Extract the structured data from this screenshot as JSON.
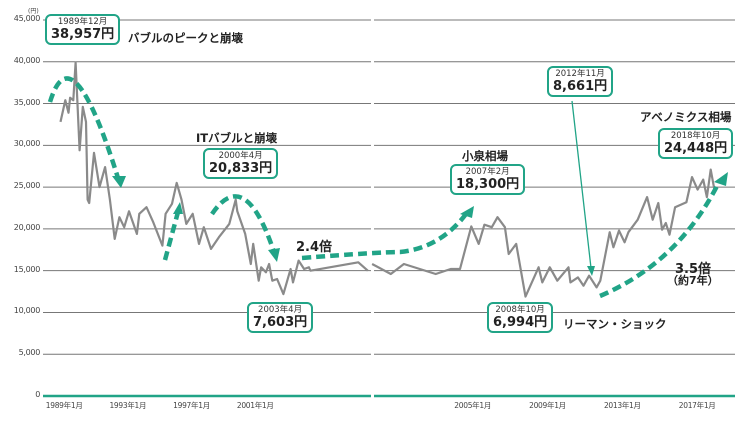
{
  "chart_data": {
    "type": "line",
    "yunit": "(円)",
    "ylim": [
      0,
      45000
    ],
    "yticks": [
      "0",
      "5,000",
      "10,000",
      "15,000",
      "20,000",
      "25,000",
      "30,000",
      "35,000",
      "40,000",
      "45,000"
    ],
    "ytick_values": [
      0,
      5000,
      10000,
      15000,
      20000,
      25000,
      30000,
      35000,
      40000,
      45000
    ],
    "grid": true,
    "panels": [
      {
        "xlim": [
          1988.7,
          2009.3
        ],
        "xticks": [
          {
            "year": 1989,
            "label": "1989年1月"
          },
          {
            "year": 1993,
            "label": "1993年1月"
          },
          {
            "year": 1997,
            "label": "1997年1月"
          },
          {
            "year": 2001,
            "label": "2001年1月"
          }
        ],
        "x": [
          1989.8,
          1990.1,
          1990.3,
          1990.4,
          1990.6,
          1990.75,
          1991.0,
          1991.2,
          1991.4,
          1991.5,
          1991.6,
          1991.9,
          1992.25,
          1992.6,
          1992.9,
          1993.2,
          1993.5,
          1993.8,
          1994.1,
          1994.6,
          1994.75,
          1995.2,
          1995.6,
          1996.2,
          1996.4,
          1996.8,
          1997.1,
          1997.4,
          1997.7,
          1998.1,
          1998.5,
          1998.8,
          1999.25,
          1999.75,
          2000.4,
          2000.8,
          2000.9,
          2001.4,
          2001.75,
          2001.9,
          2002.25,
          2002.4,
          2002.7,
          2002.9,
          2003.1,
          2003.4,
          2003.8,
          2004.25,
          2004.4,
          2004.75,
          2005.1,
          2005.4,
          2005.5,
          2008.5,
          2009.1
        ],
        "y": [
          32800,
          35400,
          33900,
          35700,
          35400,
          39900,
          29400,
          34600,
          32800,
          23500,
          23100,
          29100,
          25000,
          27400,
          23500,
          18800,
          21400,
          20200,
          22100,
          19400,
          21800,
          22600,
          20900,
          18000,
          21800,
          23000,
          25500,
          23500,
          20600,
          21800,
          18200,
          20200,
          17600,
          19000,
          20600,
          23500,
          22100,
          19400,
          15800,
          18200,
          13800,
          15400,
          14800,
          15800,
          13800,
          14000,
          12200,
          15200,
          13600,
          16200,
          15200,
          15400,
          15000,
          16000,
          15000
        ]
      },
      {
        "xlim": [
          2000.6,
          2019.9
        ],
        "xticks": [
          {
            "year": 2005,
            "label": "2005年1月"
          },
          {
            "year": 2009,
            "label": "2009年1月"
          },
          {
            "year": 2013,
            "label": "2013年1月"
          },
          {
            "year": 2017,
            "label": "2017年1月"
          }
        ],
        "x": [
          2000.5,
          2001.5,
          2002.2,
          2003.9,
          2004.7,
          2005.2,
          2005.8,
          2006.2,
          2006.5,
          2006.9,
          2007.2,
          2007.6,
          2007.8,
          2008.2,
          2008.7,
          2009.4,
          2009.6,
          2010.0,
          2010.4,
          2011.0,
          2011.1,
          2011.5,
          2011.8,
          2012.1,
          2012.5,
          2012.7,
          2013.2,
          2013.4,
          2013.7,
          2014.0,
          2014.2,
          2014.7,
          2015.2,
          2015.5,
          2015.8,
          2016.0,
          2016.2,
          2016.4,
          2016.7,
          2017.3,
          2017.6,
          2017.9,
          2018.2,
          2018.4,
          2018.6,
          2018.8
        ],
        "y": [
          15800,
          14600,
          15800,
          14600,
          15200,
          15200,
          20300,
          18200,
          20500,
          20200,
          21400,
          20200,
          17000,
          18200,
          11900,
          15400,
          13600,
          15400,
          13800,
          15400,
          13600,
          14200,
          13200,
          14400,
          13000,
          13800,
          19600,
          17800,
          19800,
          18400,
          19600,
          21100,
          23800,
          21100,
          23100,
          19900,
          20700,
          19300,
          22600,
          23200,
          26200,
          24700,
          25900,
          23800,
          27100,
          24700
        ]
      }
    ],
    "line_color": "#8a8a8a",
    "accent_color": "#21a487",
    "annotations": {
      "bubble_peak": {
        "date": "1989年12月",
        "value": "38,957円",
        "label": "バブルのピークと崩壊"
      },
      "it_bubble": {
        "date": "2000年4月",
        "value": "20,833円",
        "label": "ITバブルと崩壊"
      },
      "low_2003": {
        "date": "2003年4月",
        "value": "7,603円"
      },
      "ratio_24": "2.4倍",
      "koizumi": {
        "date": "2007年2月",
        "value": "18,300円",
        "label": "小泉相場"
      },
      "lehman": {
        "date": "2008年10月",
        "value": "6,994円",
        "label": "リーマン・ショック"
      },
      "low_2012": {
        "date": "2012年11月",
        "value": "8,661円"
      },
      "abenomics": {
        "date": "2018年10月",
        "value": "24,448円",
        "label": "アベノミクス相場"
      },
      "ratio_35": "3.5倍",
      "ratio_35_note": "（約7年）"
    }
  }
}
